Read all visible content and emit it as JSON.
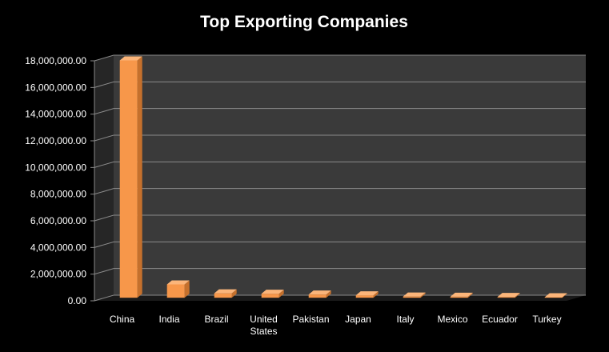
{
  "chart_data": {
    "type": "bar",
    "title": "Top Exporting Companies",
    "xlabel": "",
    "ylabel": "",
    "categories": [
      "China",
      "India",
      "Brazil",
      "United States",
      "Pakistan",
      "Japan",
      "Italy",
      "Mexico",
      "Ecuador",
      "Turkey"
    ],
    "values": [
      17800000,
      1000000,
      330000,
      300000,
      240000,
      180000,
      90000,
      80000,
      60000,
      40000
    ],
    "ylim": [
      0,
      18000000
    ],
    "yticks": [
      0,
      2000000,
      4000000,
      6000000,
      8000000,
      10000000,
      12000000,
      14000000,
      16000000,
      18000000
    ],
    "ytick_labels": [
      "0.00",
      "2,000,000.00",
      "4,000,000.00",
      "6,000,000.00",
      "8,000,000.00",
      "10,000,000.00",
      "12,000,000.00",
      "14,000,000.00",
      "16,000,000.00",
      "18,000,000.00"
    ],
    "grid": true,
    "legend": "none",
    "colors": {
      "background": "#000000",
      "plot_wall": "#3a3a3a",
      "plot_side": "#262626",
      "floor": "#1a1a1a",
      "gridline": "#8a8a8a",
      "bar_front": "#f7974a",
      "bar_top": "#fbb57a",
      "bar_side": "#c5702c",
      "text": "#ffffff"
    }
  }
}
